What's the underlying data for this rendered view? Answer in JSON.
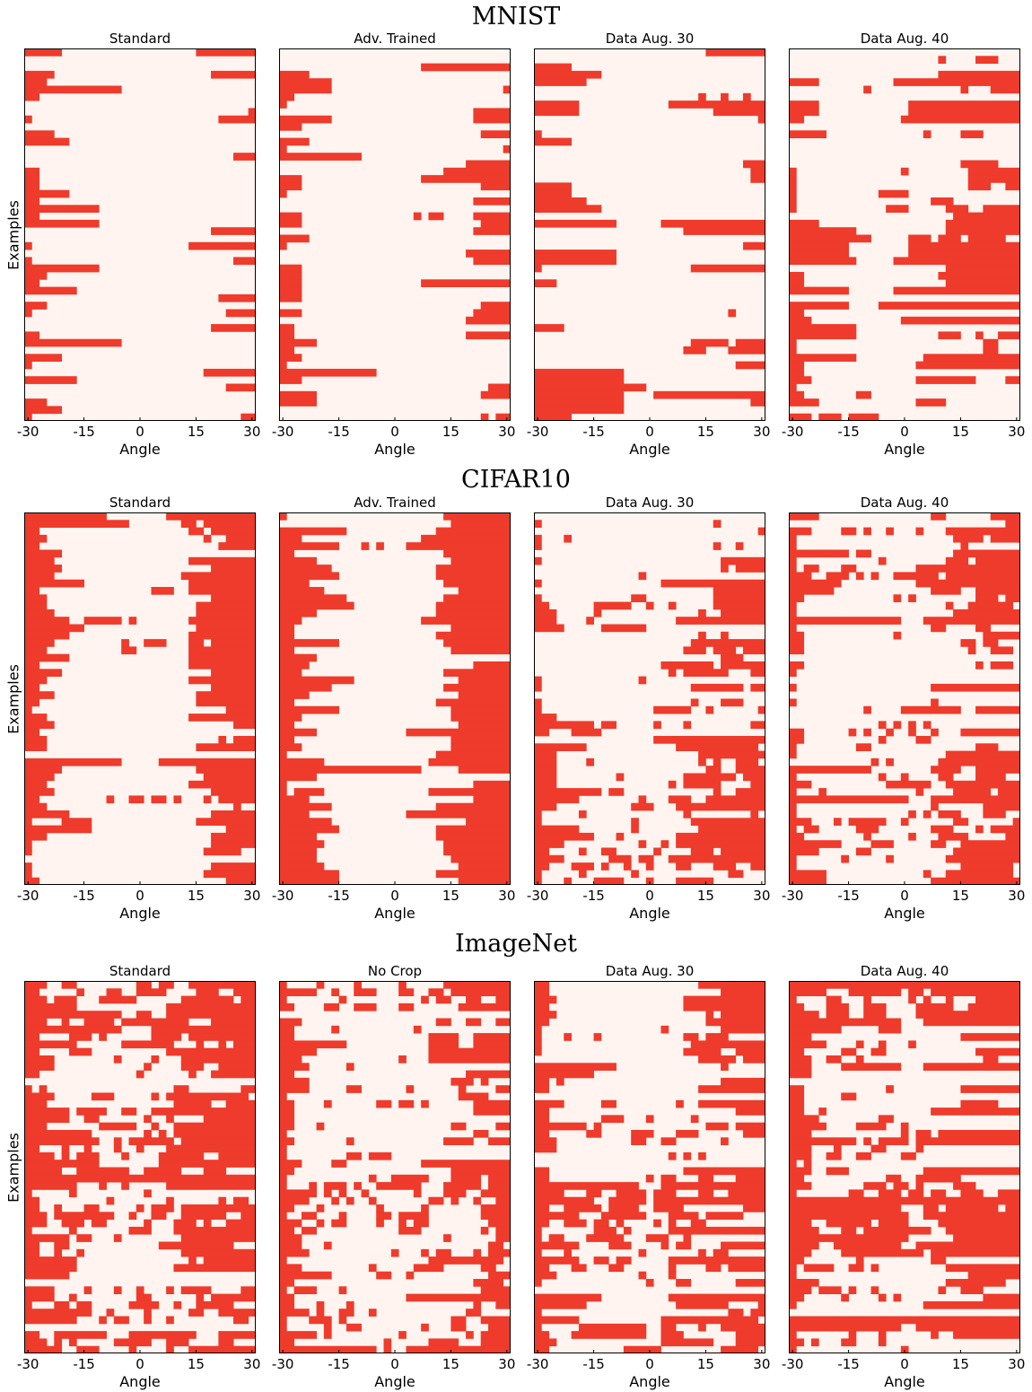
{
  "colors": {
    "flip": "#ee3b2c",
    "correct": "#fff4ef",
    "frame": "#000000"
  },
  "chart_data": [
    {
      "section": "MNIST",
      "type": "heatmap",
      "title": "Standard",
      "xlabel": "Angle",
      "ylabel": "Examples",
      "xticks": [
        "-30",
        "-15",
        "0",
        "15",
        "30"
      ],
      "xlim": [
        -30,
        30
      ],
      "n_angles": 31,
      "n_examples": 50,
      "rows": [
        "0,4;23,30",
        "",
        "",
        "0,3;25,30",
        "0,2",
        "0,12",
        "0,1",
        "",
        "30,30",
        "0,0;26,30",
        "",
        "0,3",
        "0,5",
        "",
        "28,30",
        "",
        "0,1",
        "0,1",
        "0,1",
        "0,5",
        "0,1",
        "0,9",
        "0,1",
        "0,9",
        "25,30",
        "",
        "0,0;22,30",
        "",
        "0,0;28,30",
        "0,9",
        "0,2",
        "0,1",
        "0,6",
        "26,30",
        "0,2",
        "0,0;27,30",
        "",
        "25,30",
        "0,1",
        "0,12",
        "",
        "0,4",
        "0,0",
        "24,30",
        "0,6",
        "27,30",
        "",
        "0,2",
        "0,4",
        "0,0;29,30"
      ]
    },
    {
      "section": "MNIST",
      "type": "heatmap",
      "title": "Adv. Trained",
      "xlabel": "Angle",
      "ylabel": "",
      "xticks": [
        "-30",
        "-15",
        "0",
        "15",
        "30"
      ],
      "xlim": [
        -30,
        30
      ],
      "n_angles": 31,
      "n_examples": 50,
      "rows": [
        "",
        "",
        "19,30",
        "0,3",
        "0,6",
        "0,6;30,30",
        "0,1",
        "0,0",
        "26,30",
        "0,6;26,30",
        "0,2",
        "27,30",
        "0,3",
        "0,0;30,30",
        "0,10",
        "25,30",
        "22,30",
        "0,2;19,30",
        "0,2;27,30",
        "0,0",
        "26,30",
        "",
        "0,2;18,18;20,21;26,30",
        "0,2;27,30",
        "26,30",
        "0,3",
        "0,0",
        "25,30",
        "26,30",
        "0,2",
        "0,2",
        "0,2;19,30",
        "0,2",
        "0,2",
        "27,30",
        "0,2;26,30",
        "25,30",
        "0,1",
        "0,1;25,30",
        "0,4",
        "0,1",
        "0,2",
        "0,0",
        "0,12",
        "0,2",
        "28,30",
        "0,4;27,30",
        "0,4",
        "",
        "27,27;29,30"
      ]
    },
    {
      "section": "MNIST",
      "type": "heatmap",
      "title": "Data Aug. 30",
      "xlabel": "Angle",
      "ylabel": "",
      "xticks": [
        "-30",
        "-15",
        "0",
        "15",
        "30"
      ],
      "xlim": [
        -30,
        30
      ],
      "n_angles": 31,
      "n_examples": 50,
      "rows": [
        "23,30",
        "",
        "0,4",
        "0,8",
        "0,6",
        "",
        "22,22;25,25;28,28",
        "0,5;18,30",
        "0,5;24,30",
        "30,30",
        "",
        "0,0",
        "0,4",
        "",
        "",
        "28,30",
        "29,30",
        "29,30",
        "0,4",
        "0,4",
        "0,6",
        "0,8",
        "",
        "0,10;17,30",
        "20,30",
        "",
        "28,30",
        "0,10",
        "0,10",
        "0,0;21,30",
        "",
        "0,2",
        "",
        "",
        "",
        "26,26",
        "",
        "0,3",
        "",
        "21,25;27,30",
        "20,22;26,30",
        "",
        "27,30",
        "0,11",
        "0,11",
        "0,14",
        "0,11;16,30",
        "0,11;29,30",
        "0,11",
        "0,4"
      ]
    },
    {
      "section": "MNIST",
      "type": "heatmap",
      "title": "Data Aug. 40",
      "xlabel": "Angle",
      "ylabel": "",
      "xticks": [
        "-30",
        "-15",
        "0",
        "15",
        "30"
      ],
      "xlim": [
        -30,
        30
      ],
      "n_angles": 31,
      "n_examples": 50,
      "rows": [
        "",
        "20,20;25,27",
        "",
        "20,30",
        "0,3;14,30",
        "10,10;23,23;27,30",
        "",
        "0,3;16,30",
        "0,3;16,30",
        "0,1;15,30",
        "",
        "0,4;18,18;23,25",
        "",
        "",
        "",
        "23,27",
        "0,0;15,15;24,30",
        "0,0;24,30",
        "0,0;24,26;29,30",
        "0,0;12,15",
        "0,0;19,21",
        "0,0;13,15;21,23;26,30",
        "22,30",
        "0,3;21,30",
        "0,8;21,30",
        "0,10;16,18;20,22;24,28",
        "0,7;16,30",
        "0,7;16,30",
        "0,8;14,30",
        "21,30",
        "0,1;20,30",
        "0,1;21,30",
        "0,7;14,30",
        "",
        "0,7;12,30",
        "0,1",
        "0,2;15,30",
        "0,8",
        "0,8;20,22;25,25;28,30",
        "0,0;26,27",
        "0,0;26,27",
        "0,8;18,30",
        "0,1;17,30",
        "0,1",
        "0,2;17,24;29,30",
        "0,0",
        "0,1;9,10",
        "0,3;17,20",
        "",
        "0,2;4,6;8,11"
      ]
    },
    {
      "section": "CIFAR10",
      "type": "heatmap",
      "title": "Standard",
      "xlabel": "Angle",
      "ylabel": "Examples",
      "xticks": [
        "-30",
        "-15",
        "0",
        "15",
        "30"
      ],
      "xlim": [
        -30,
        30
      ],
      "n_angles": 31,
      "n_examples": 50,
      "rows": [
        "0,10;19,30",
        "0,13;21,22;24,30",
        "0,1;22,23;25,30",
        "0,2;24,24;27,30",
        "0,1;26,30",
        "0,4",
        "0,3;22,30",
        "0,4;25,30",
        "0,3;21,30",
        "0,7;22,30",
        "0,1;17,19;22,30",
        "0,2;25,30",
        "0,2;23,30",
        "0,3;23,30",
        "0,5;8,12;14,14;22,30",
        "0,7;23,30",
        "0,5;22,30",
        "0,3;13,13;16,18;22,23;25,30",
        "0,2;13,14;22,30",
        "0,5;22,30",
        "0,1;22,30",
        "0,4;25,30",
        "0,2;22,30",
        "0,1;25,30",
        "0,3;23,30",
        "0,1;23,30",
        "0,0;27,30",
        "0,2;22,30",
        "0,3;28,30",
        "0,1",
        "0,2;26,26;28,30",
        "0,2;23,30",
        "",
        "0,12;18,30",
        "0,4;23,30",
        "0,3;24,30",
        "0,2;22,30",
        "0,3;25,30",
        "0,1;11,11;14,15;17,18;20,20;24,24;26,30",
        "0,2;28,28",
        "0,5;25,30",
        "0,0;5,8;23,30",
        "0,8;27,30",
        "0,2;25,30",
        "0,0;25,30",
        "0,0;24,28",
        "",
        "0,0;25,30",
        "0,0;24,30",
        "0,1;27,30"
      ]
    },
    {
      "section": "CIFAR10",
      "type": "heatmap",
      "title": "Adv. Trained",
      "xlabel": "Angle",
      "ylabel": "",
      "xticks": [
        "-30",
        "-15",
        "0",
        "15",
        "30"
      ],
      "xlim": [
        -30,
        30
      ],
      "n_angles": 31,
      "n_examples": 50,
      "rows": [
        "0,0;22,30",
        "23,30",
        "0,8;21,30",
        "0,2;19,30",
        "0,7;11,11;13,13;17,30",
        "0,1;22,30",
        "0,4;23,30",
        "0,6;21,30",
        "0,7;21,30",
        "0,3;22,30",
        "0,5;24,30",
        "0,8;22,30",
        "0,9;21,30",
        "0,4;21,30",
        "0,2;19,30",
        "0,1;23,30",
        "0,1;21,30",
        "0,7;22,30",
        "0,1;23,30",
        "0,4",
        "0,3;26,30",
        "0,2;22,30",
        "0,9;24,30",
        "0,6;22,30",
        "0,3;24,30",
        "0,1;21,30",
        "0,7;23,30",
        "0,2;23,30",
        "0,1;24,30",
        "0,4;17,30",
        "0,1;23,30",
        "0,2;23,30",
        "0,0;21,30",
        "0,5;20,30",
        "0,18;24,30",
        "0,4",
        "0,0;26,30",
        "0,0;2,2;3,5;20,30",
        "0,3;26,30",
        "0,6;21,30",
        "0,3;17,30",
        "0,6;25,30",
        "0,7;21,30",
        "0,4;21,30",
        "0,5;22,30",
        "0,4;22,30",
        "0,4;23,30",
        "0,5;24,30",
        "0,7;21,30",
        "0,7;24,30"
      ]
    },
    {
      "section": "CIFAR10",
      "type": "heatmap",
      "title": "Data Aug. 30",
      "xlabel": "Angle",
      "ylabel": "",
      "xticks": [
        "-30",
        "-15",
        "0",
        "15",
        "30"
      ],
      "xlim": [
        -30,
        30
      ],
      "n_angles": 31,
      "n_examples": 50,
      "rows": [
        "",
        "0,0;24,24",
        "30,30",
        "0,0;4,4",
        "0,0;24,24;27,27",
        "",
        "0,0;25,30",
        "25,25;27,30",
        "14,14",
        "0,0;17,30",
        "24,30",
        "0,0;13,13;14,14;24,30",
        "0,1;8,12;15,15;18,18;24,30",
        "0,2;8,8;22,22;25,30",
        "0,2;7,7;19,30",
        "0,3;9,14",
        "22,22;25,25",
        "21,30",
        "20,22;24,26;28,30",
        "25,27",
        "17,23;25,30",
        "18,18;20,25;29,30",
        "0,0;14,14",
        "0,0;21,27;29,30",
        "",
        "0,0;21,21;25,27",
        "0,0;16,20;23,23;30,30",
        "0,2",
        "0,7;9,10;16,16;20,20;29,30",
        "0,1;5,8",
        "16,30",
        "0,6;19,29",
        "0,2;22,30",
        "0,2;7,7;22,22;24,24;27,29",
        "0,2;23,24;27,30",
        "0,2;11,11;20,26;28,30",
        "0,2;18,18;20,24;29,30",
        "0,8;10,11;24,24;27,30",
        "0,5;14,14;18,20;23,30",
        "0,2;13,15;19,30",
        "0,0;6,6;20,20;29,29",
        "0,0;13,13;21,30",
        "0,5;13,13;22,30",
        "0,7;11,11;19,30",
        "0,3;14,14;17,17;19,30",
        "0,1;6,6;9,10;16,16;21,23;25,30",
        "0,3;10,12;14,15;18,30",
        "0,1;5,7;9,9;12,12;15,15;19,20;24,26;29,30",
        "0,0;6,6;13,13;26,27",
        "0,0;4,4;8,11;15,15;19,23"
      ]
    },
    {
      "section": "CIFAR10",
      "type": "heatmap",
      "title": "Data Aug. 40",
      "xlabel": "Angle",
      "ylabel": "",
      "xticks": [
        "-30",
        "-15",
        "0",
        "15",
        "30"
      ],
      "xlim": [
        -30,
        30
      ],
      "n_angles": 31,
      "n_examples": 50,
      "rows": [
        "0,3;19,20;27,30",
        "29,30",
        "0,2;7,8;10,10;13,13;17,17;21,30",
        "0,0;22,25;27,30",
        "0,0;23,23",
        "0,7;9,10;22,30",
        "0,0;12,12;21,23;25,30",
        "0,0;2,3;7,8;17,30",
        "0,2;5,7;9,9;11,11;14,19;21,30",
        "0,6;17,30",
        "0,5;19,22;25,30",
        "0,1;14,14;16,16;25,27;29,30",
        "0,0;21,21;24,29",
        "0,0;22,30",
        "0,14;18,30",
        "0,0;19,20;25,26",
        "0,1;14,14;26,30",
        "0,1;23,24;26,27",
        "0,1;24,24;27,29",
        "",
        "0,1;25,25;27,29",
        "0,0",
        "",
        "0,0;19,30",
        "",
        "0,0;19,19",
        "10,10;15,22;25,30",
        "",
        "12,12;14,14;16,16;18,18",
        "0,1;8,8;10,10;13,13;16,16;19,19;23,30",
        "0,1;12,12;17,18",
        "0,0;9,10;25,27",
        "0,0;21,30",
        "11,11;13,13;20,30",
        "0,10;19,22;25,30",
        "0,0;12,12;15,15;20,21;25,28",
        "0,2;13,18;21,30",
        "0,0;4,4;17,17;22,26;28,30",
        "0,15;19,30",
        "0,0;19,19;26,30",
        "0,0;16,16;18,18;20,22;26,28",
        "0,2;6,6;8,12;15,15;22,23;30,30",
        "0,0;2,3;9,11;19,21;25,25;27,30",
        "0,1;10,10;16,16;20,23;29,30",
        "0,6;11,13;19,20;23,30",
        "0,3;9,10;22,30",
        "0,0;7,7;13,13;21,30",
        "0,0;23,29",
        "0,4;18,18;21,29",
        "0,4;19,30"
      ]
    },
    {
      "section": "ImageNet",
      "type": "heatmap",
      "title": "Standard",
      "xlabel": "Angle",
      "ylabel": "Examples",
      "xticks": [
        "-30",
        "-15",
        "0",
        "15",
        "30"
      ],
      "xlim": [
        -30,
        30
      ],
      "n_angles": 31,
      "n_examples": 50,
      "rows": [
        "0,2;5,6;15,16;18,19;22,30",
        "0,1;7,7;11,12;15,18;23,25;28,30",
        "0,2;4,6;10,14;21,27;29,30",
        "0,6;19,30",
        "0,12;15,16;19,30",
        "0,2;5,5;8,11;13,21;25,30",
        "0,12;17,30",
        "0,1;6,8;10,10;17,20;22,30",
        "0,6;13,19;23,23;26,26;28,30",
        "0,1;6,8;19,30",
        "0,3;12,12;17,17;21,30",
        "0,3;16,16;21,23;26,30",
        "0,1;15,15;22,22;25,30",
        "",
        "0,0;2,2;20,21;29,30",
        "0,3;9,11;17,17;19,29",
        "0,2;20,24;27,30",
        "0,5;7,10;13,14;17,30",
        "0,5;8,9;16,16;19,19;24,30",
        "0,2;10,14;17,17;20,30",
        "0,8;16,16;18,18;20,30",
        "0,9;12,12;14,19;21,30",
        "0,1;5,5;8,8;12,12;15,15;19,30",
        "0,3;5,5;7,9;13,13;18,23;26,30",
        "0,9;18,30",
        "0,4;7,13;16,20;24,26",
        "0,30",
        "0,6;10,10;13,13;19,30",
        "0,0;6,6;16,16",
        "0,1;11,11;19,19;26,26;28,29",
        "0,1;4,4;8,9;15,15;17,19;21,30",
        "0,2;4,11;14,14;17,18;21,26;29,30",
        "0,2;5,7;9,10;16,16;20,22;24,24;27,30",
        "0,0;6,6;14,16;20,30",
        "0,5;7,8;12,12;21,30",
        "0,1;4,5;18,27",
        "0,1;4,4;7,7;21,30",
        "0,6;22,22;24,30",
        "0,6;20,30",
        "0,5",
        "",
        "0,3;8,8;12,12;15,15;19,19;21,24;29,30",
        "0,3;6,6;15,16;23,23;25,30",
        "0,0;4,5;7,8;14,17;20,20;23,27",
        "0,8;11,11;16,16;22,23;26,30",
        "0,6;10,10;12,13;16,16;19,19;28,29",
        "",
        "0,1;4,10;14,22;26,30",
        "0,2;4,4;6,6;12,16;19,21;26,27",
        "0,4;7,9;14,14;19,19;22,30"
      ]
    },
    {
      "section": "ImageNet",
      "type": "heatmap",
      "title": "No Crop",
      "xlabel": "Angle",
      "ylabel": "",
      "xticks": [
        "-30",
        "-15",
        "0",
        "15",
        "30"
      ],
      "xlim": [
        -30,
        30
      ],
      "n_angles": 31,
      "n_examples": 50,
      "rows": [
        "0,0;5,5;10,10;16,16;22,30",
        "0,4;7,7;10,12;16,17;20,21;23,30",
        "0,0;8,8;19,19;21,22;25,26;29,30",
        "0,1;6,7;10,12;16,17;24,30",
        "",
        "0,2;21,22;25,26;29,30",
        "0,1;7,7;18,18",
        "0,1;20,23;26,30",
        "0,8;20,23;26,30",
        "0,4;20,30",
        "0,2;16,16;20,30",
        "0,3;9,9",
        "0,1;25,30",
        "0,3;23,25;27,27",
        "0,3;9,10;17,17;24,24;29,30",
        "0,0;24,27",
        "0,1;6,6;13,14;16,17;19,19;26,30",
        "0,1;26,30",
        "0,1",
        "0,1;5,5;23,24;29,30",
        "0,0;26,27",
        "0,1;9,9;22,25;28,30",
        "0,0",
        "0,0;9,10;12,14",
        "0,2;7,8;19,30",
        "0,1;23,30",
        "0,0;12,12;15,19;23,26;28,30",
        "0,0;4,4;6,8;10,10;13,18;22,26;28,30",
        "0,4;6,6;8,8;11,11;18,18;22,24;27,30",
        "0,3;7,7;9,9;12,12;20,21;23,23;26,26;29,30",
        "0,1;5,5;13,13;19,19;27,30",
        "0,0;3,4;8,8;13,14;16,19;27,30",
        "0,2;5,5;7,8;13,13;16,16;18,19;28,30",
        "0,1;3,4;16,18;27,27;29,30",
        "0,2;22,22;29,30",
        "0,2;6,6;28,29",
        "0,3;15,15;19,19;21,22;26,26;28,30",
        "0,0;20,29",
        "0,2;12,12;18,21;27,28",
        "0,6;13,14;17,17;28,30",
        "0,1;26,29",
        "0,0;2,4;8,8;27,30",
        "0,1;17,30",
        "0,1;5,5;9,9;26,26;29,30",
        "0,3;5,5;8,9;12,12;25,26",
        "0,0;4,6;8,8;23,24;27,30",
        "0,0;6,6;9,10;19,19;23,24;28,30",
        "0,4;6,6;16,16;25,25;27,30",
        "0,1;14,14;20,23;27,30",
        "0,12;14,14;17,30"
      ]
    },
    {
      "section": "ImageNet",
      "type": "heatmap",
      "title": "Data Aug. 30",
      "xlabel": "Angle",
      "ylabel": "",
      "xticks": [
        "-30",
        "-15",
        "0",
        "15",
        "30"
      ],
      "xlim": [
        -30,
        30
      ],
      "n_angles": 31,
      "n_examples": 50,
      "rows": [
        "0,1;22,30",
        "0,1;25,30",
        "0,2;20,30",
        "0,1;20,30",
        "0,2;23,23;25,30",
        "0,1;23,30",
        "0,0;17,17;25,30",
        "0,0;4,4;8,8;20,21;23,25",
        "0,0;21,30",
        "0,0;20,24;27,30",
        "22,26;28,30",
        "0,10;25,25",
        "0,7",
        "0,0;1,1;3,3;25,30",
        "0,1;22,30",
        "",
        "0,3;9,10;19,19;22,30",
        "0,1;27,30",
        "0,1;9,11;15,15;21,21",
        "0,6;8,8;23,25;27,30",
        "0,1;7,8;13,15;19,21;28,30",
        "0,2;13,14;17,18;25,25",
        "0,2",
        "18,18;20,20;22,22",
        "",
        "0,1;20,30",
        "0,1;15,15;17,18;22,23;27,30",
        "0,13;17,30",
        "0,3;7,8;11,14;16,18;22,23;26,30",
        "0,7;10,14;16,30",
        "0,1;4,8;10,13;16,19;28,30",
        "0,5;9,14;18,21;23,27",
        "0,1;4,6;8,9;11,11;16,16;18,18;21,22",
        "0,0;8,10;12,12;18,30",
        "0,0;2,3;7,11;15,17;20,20",
        "0,5;10,12;17,17;19,20;25,30",
        "0,0;4,4;14,14;22,22;24,25",
        "0,5;8,9;11,12;18,30",
        "0,1;5,6;10,11;18,18;23,24;26,30",
        "0,2;14,14;18,18",
        "0,0;15,15;19,20;27,30",
        "",
        "0,8;18,30",
        "0,6;19,25;30,30",
        "0,0;26,27;29,30",
        "0,5;17,29",
        "0,0;6,14;17,18;22,22;25,30",
        "0,1;5,14;17,19;27,30",
        "0,2;17,23;27,30",
        "0,1;12,16;25,29"
      ]
    },
    {
      "section": "ImageNet",
      "type": "heatmap",
      "title": "Data Aug. 40",
      "xlabel": "Angle",
      "ylabel": "",
      "xticks": [
        "-30",
        "-15",
        "0",
        "15",
        "30"
      ],
      "xlim": [
        -30,
        30
      ],
      "n_angles": 31,
      "n_examples": 50,
      "rows": [
        "0,30",
        "0,4;8,14;16,17;19,30",
        "0,0;5,6;10,10;16,16;18,18;21,21;25,30",
        "0,1;5,7;10,12;17,21;24,30",
        "0,3;5,7;10,12;17,30",
        "0,14;18,30",
        "0,6;12,14",
        "0,2;23,30",
        "0,4;9,9;12,12;16,16",
        "0,1;7,8;11,12;25,30",
        "0,2;5,6;9,9;26,27",
        "0,2;7,14;18,30",
        "0,2",
        "",
        "0,1;13,13;23,30",
        "0,1;7,8",
        "0,1;23,27",
        "0,1;4,4;19,30",
        "0,3;12,13",
        "0,4;9,12;15,15",
        "0,2;15,15;17,18;20,30",
        "0,8;10,10;12,15;17,30",
        "0,2;6,6;11,12;17,17",
        "0,2;5,6;9,10;15,16",
        "0,0;2,2",
        "0,2;5,7;18,30",
        "0,1;13,14;17,22",
        "0,2;10,12;14,15;17,17;22,24",
        "0,0;8,9;12,14;16,17;19,20;23,25;28,30",
        "0,30",
        "0,14;18,19;21,27;29,30",
        "0,15;18,30",
        "0,2;5,10;12,15;20,30",
        "0,3;7,8;10,18;21,30",
        "0,15;22,30",
        "0,3;6,14;17,30",
        "0,2;7,17;19,30",
        "0,1;9,9;19,20",
        "0,0;2,5;8,9;11,11;21,30",
        "0,0;24,30",
        "0,3;21,28",
        "0,2;4,6;8,8;11,11;20,20;23,25",
        "0,1;7,7;12,12;14,14;26,30",
        "0,0;18,30",
        "",
        "0,30",
        "0,14;17,30",
        "0,0;8,8;12,12;19,19;22,30",
        "0,1;3,3;7,8;12,12",
        "0,0;15,15"
      ]
    }
  ]
}
